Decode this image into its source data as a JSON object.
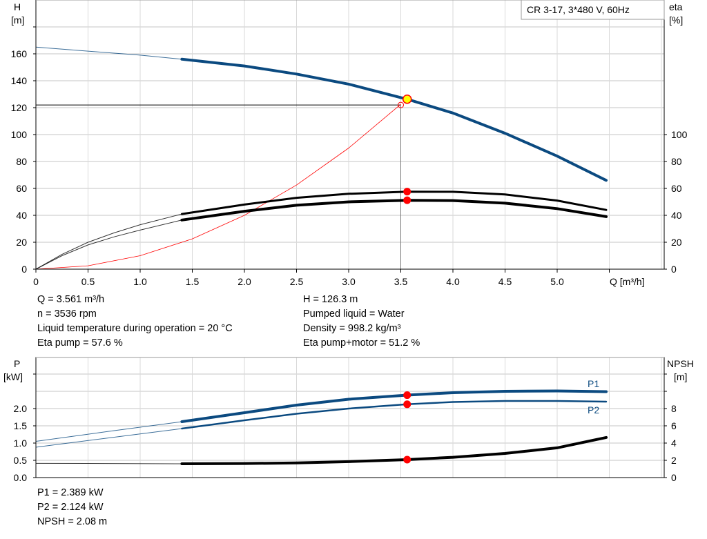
{
  "chart_data": [
    {
      "type": "line",
      "title": "CR 3-17, 3*480 V, 60Hz",
      "xlabel": "Q [m³/h]",
      "ylabel": "H\n[m]",
      "ylabel_left": [
        "H",
        "[m]"
      ],
      "ylabel_right": [
        "eta",
        "[%]"
      ],
      "xlim": [
        0,
        6.03
      ],
      "ylim": [
        0,
        200
      ],
      "grid": true,
      "x_ticks": [
        "0",
        "0.5",
        "1.0",
        "1.5",
        "2.0",
        "2.5",
        "3.0",
        "3.5",
        "4.0",
        "4.5",
        "5.0"
      ],
      "y_ticks_left": [
        "0",
        "20",
        "40",
        "60",
        "80",
        "100",
        "120",
        "140",
        "160"
      ],
      "y_ticks_right": [
        "0",
        "20",
        "40",
        "60",
        "80",
        "100"
      ],
      "series": [
        {
          "key": "H",
          "color": "#0b4a80",
          "x": [
            0,
            0.5,
            1.0,
            1.4,
            2.0,
            2.5,
            3.0,
            3.5,
            3.561,
            4.0,
            4.5,
            5.0,
            5.47
          ],
          "y": [
            165,
            162,
            159,
            156,
            151,
            145,
            137.5,
            127.5,
            126.3,
            116,
            101,
            84,
            66
          ],
          "thin_until": 1.4
        },
        {
          "key": "eta_pump",
          "color": "#000000",
          "x": [
            0,
            0.25,
            0.5,
            0.75,
            1.0,
            1.4,
            2.0,
            2.5,
            3.0,
            3.561,
            4.0,
            4.5,
            5.0,
            5.47
          ],
          "y": [
            0,
            11,
            20,
            27,
            33,
            41,
            48,
            53,
            56,
            57.6,
            57.5,
            55.5,
            51,
            44
          ],
          "thin_until": 1.4
        },
        {
          "key": "eta_pump_motor",
          "color": "#000000",
          "x": [
            0,
            0.25,
            0.5,
            0.75,
            1.0,
            1.4,
            2.0,
            2.5,
            3.0,
            3.561,
            4.0,
            4.5,
            5.0,
            5.47
          ],
          "y": [
            0,
            10,
            18,
            24,
            29,
            36.5,
            43,
            47.5,
            50,
            51.2,
            51,
            49,
            45,
            39
          ],
          "thin_until": 1.4
        },
        {
          "key": "system",
          "color": "#ff0000",
          "x": [
            0,
            0.5,
            1.0,
            1.5,
            2.0,
            2.5,
            3.0,
            3.5
          ],
          "y": [
            0,
            2.5,
            10,
            22.5,
            40,
            62.5,
            90,
            122.5
          ]
        }
      ],
      "operating_point": {
        "q": 3.561,
        "h": 126.3,
        "eta_pump": 57.6,
        "eta_pump_motor": 51.2
      },
      "required_point": {
        "q": 3.5,
        "h": 122
      },
      "info_left": [
        "Q = 3.561 m³/h",
        "n = 3536 rpm",
        "Liquid temperature during operation = 20 °C",
        "Eta pump = 57.6 %"
      ],
      "info_right": [
        "H = 126.3 m",
        "Pumped liquid = Water",
        "Density = 998.2 kg/m³",
        "Eta pump+motor = 51.2 %"
      ]
    },
    {
      "type": "line",
      "ylabel_left": [
        "P",
        "[kW]"
      ],
      "ylabel_right": [
        "NPSH",
        "[m]"
      ],
      "xlim": [
        0,
        6.03
      ],
      "ylim": [
        0,
        3.5
      ],
      "ylim_right": [
        0,
        14
      ],
      "grid": true,
      "y_ticks_left": [
        "0.0",
        "0.5",
        "1.0",
        "1.5",
        "2.0"
      ],
      "y_ticks_right": [
        "0",
        "2",
        "4",
        "6",
        "8"
      ],
      "series": [
        {
          "key": "P1",
          "name": "P1",
          "color": "#0b4a80",
          "x": [
            0,
            0.7,
            1.4,
            2.0,
            2.5,
            3.0,
            3.561,
            4.0,
            4.5,
            5.0,
            5.47
          ],
          "y": [
            1.05,
            1.34,
            1.62,
            1.88,
            2.1,
            2.27,
            2.389,
            2.46,
            2.5,
            2.51,
            2.49
          ],
          "thin_until": 1.4
        },
        {
          "key": "P2",
          "name": "P2",
          "color": "#0b4a80",
          "x": [
            0,
            0.7,
            1.4,
            2.0,
            2.5,
            3.0,
            3.561,
            4.0,
            4.5,
            5.0,
            5.47
          ],
          "y": [
            0.88,
            1.15,
            1.42,
            1.66,
            1.85,
            2.0,
            2.124,
            2.19,
            2.22,
            2.22,
            2.2
          ],
          "thin_until": 1.4
        },
        {
          "key": "NPSH",
          "color": "#000000",
          "axis": "right",
          "x": [
            0,
            0.7,
            1.4,
            2.0,
            2.5,
            3.0,
            3.561,
            4.0,
            4.5,
            5.0,
            5.47
          ],
          "y": [
            1.65,
            1.63,
            1.6,
            1.63,
            1.7,
            1.85,
            2.08,
            2.35,
            2.8,
            3.45,
            4.65
          ],
          "thin_until": 1.4
        }
      ],
      "operating_point": {
        "q": 3.561,
        "p1": 2.389,
        "p2": 2.124,
        "npsh": 2.08
      },
      "info": [
        "P1 = 2.389 kW",
        "P2 = 2.124 kW",
        "NPSH = 2.08 m"
      ]
    }
  ]
}
